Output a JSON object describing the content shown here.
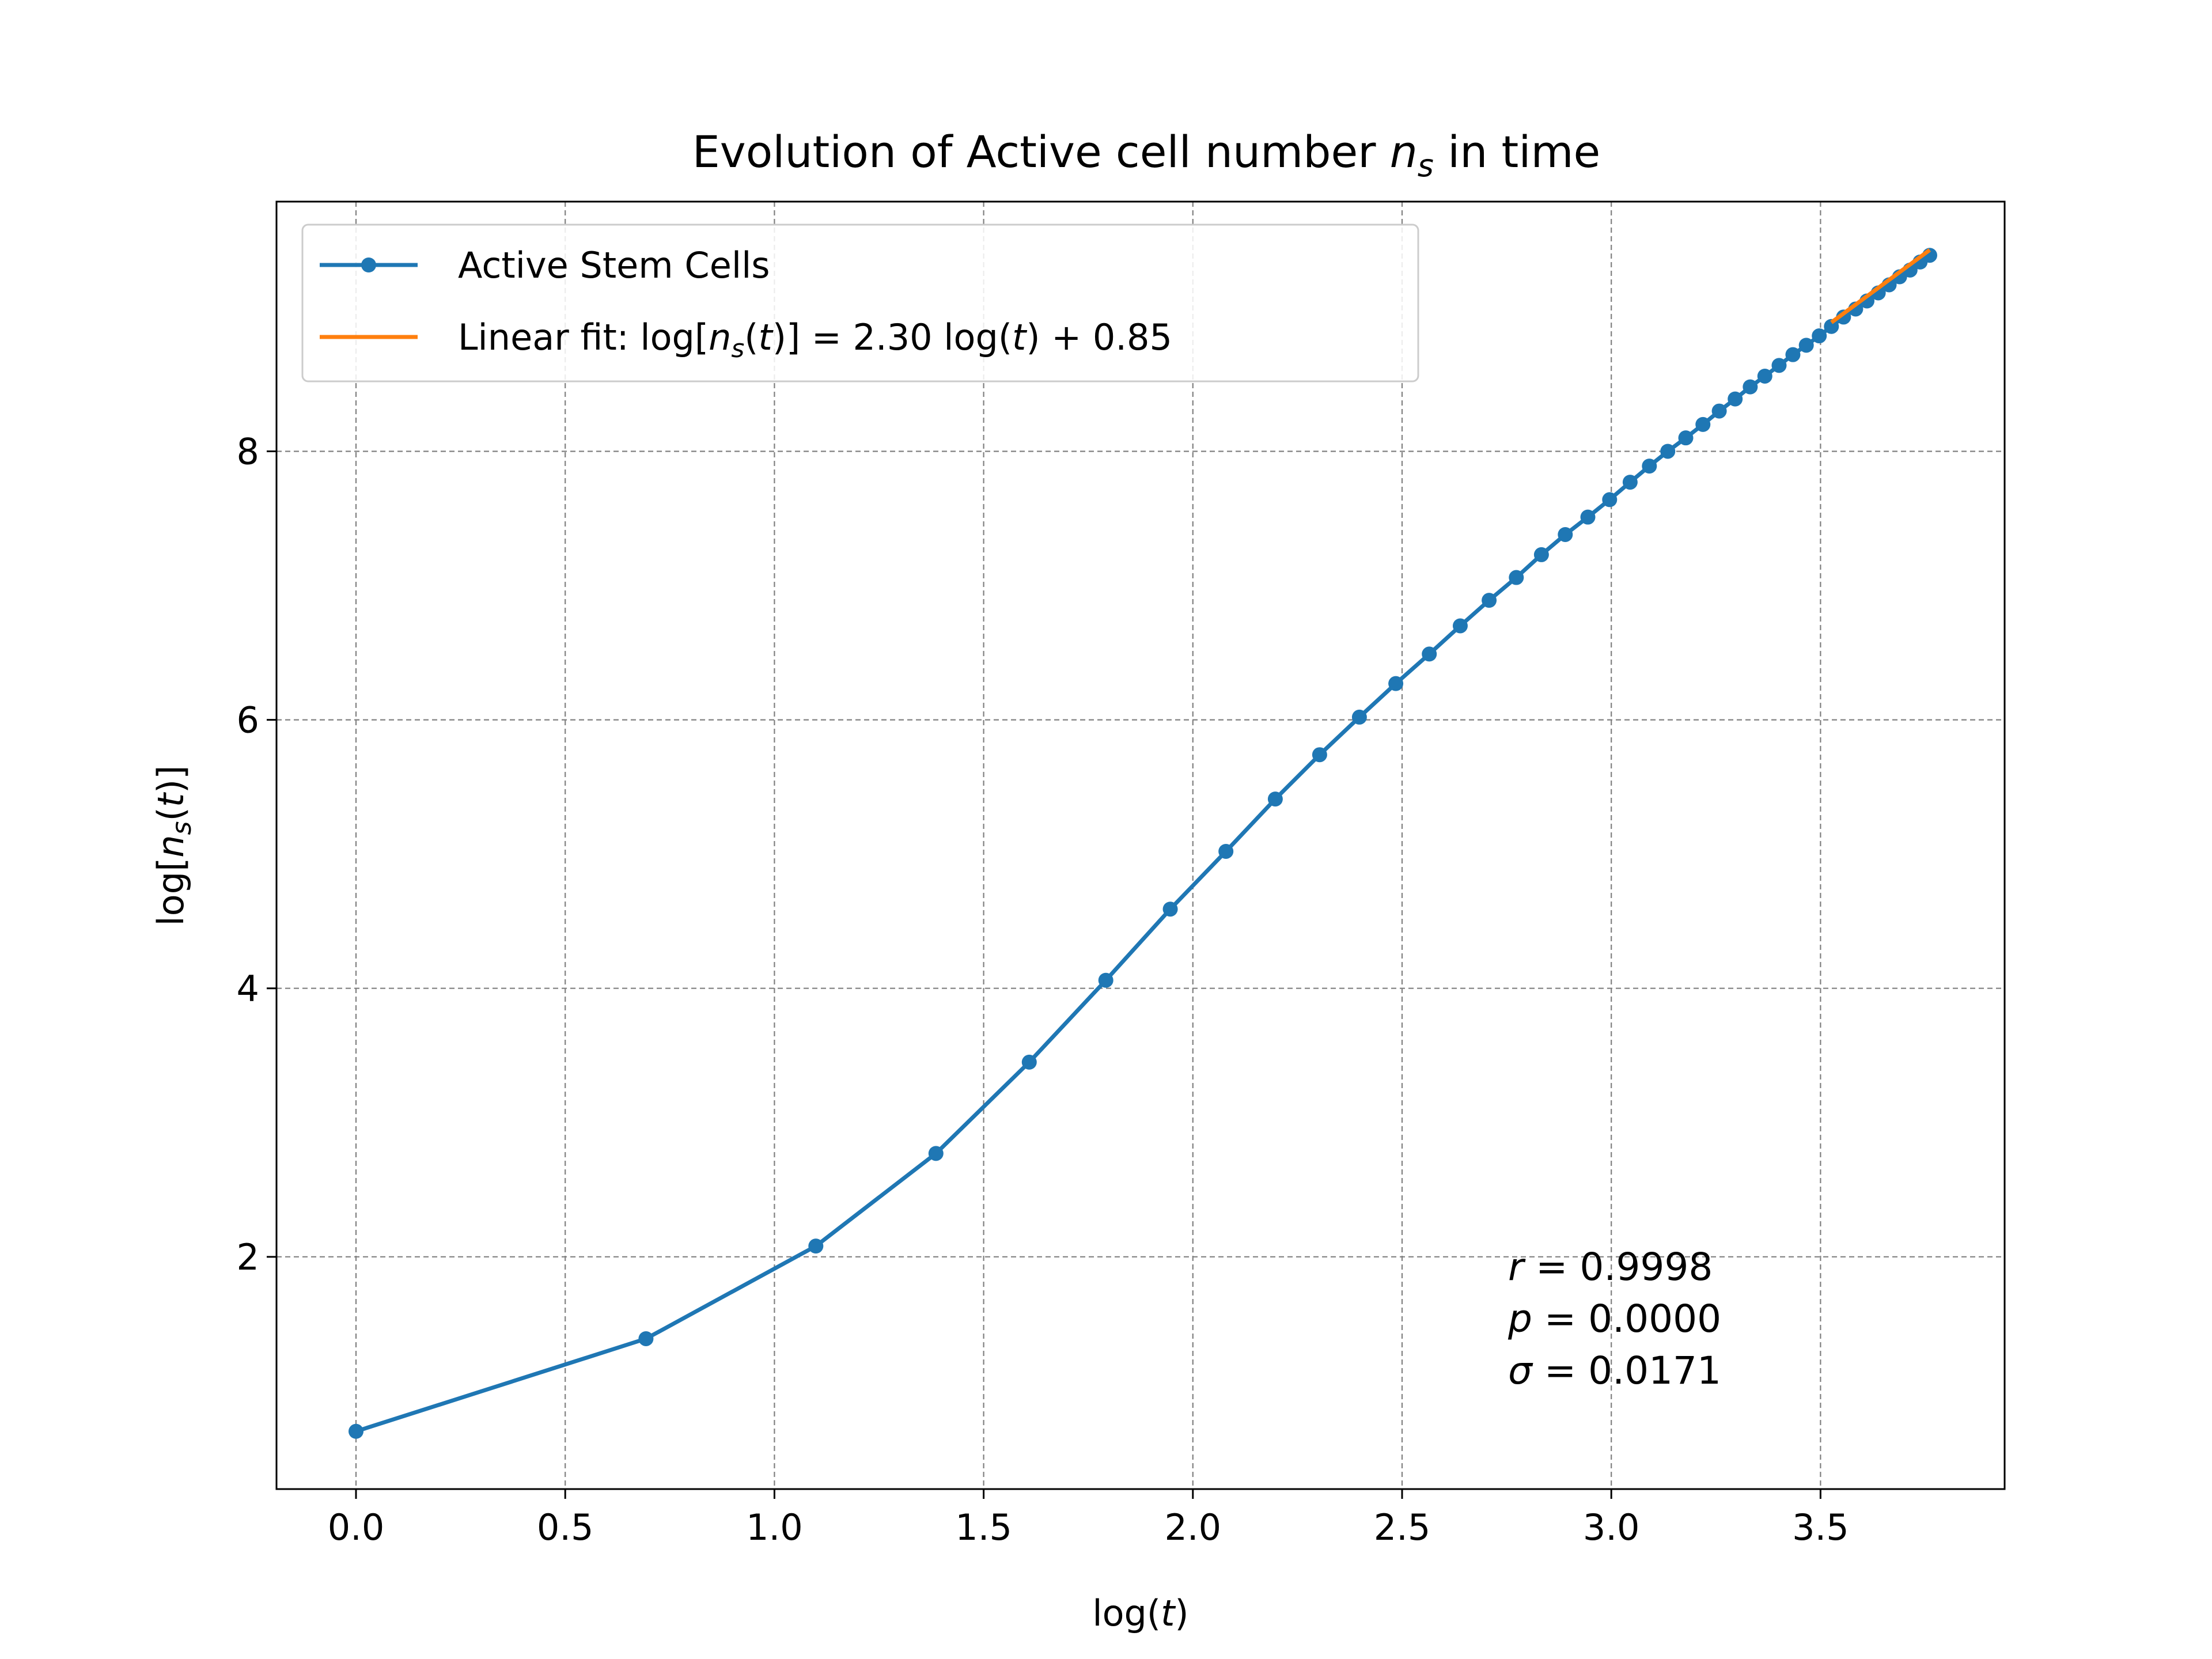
{
  "chart_data": {
    "type": "line",
    "title": {
      "prefix": "Evolution of Active cell number ",
      "var": "n",
      "sub": "s",
      "suffix": " in time"
    },
    "xlabel": {
      "pre": "log(",
      "var": "t",
      "post": ")"
    },
    "ylabel": {
      "pre": "log[",
      "var": "n",
      "sub": "s",
      "mid": "(",
      "var2": "t",
      "post": ")]"
    },
    "xlim": [
      -0.19,
      3.94
    ],
    "ylim": [
      0.27,
      9.86
    ],
    "xticks": [
      "0.0",
      "0.5",
      "1.0",
      "1.5",
      "2.0",
      "2.5",
      "3.0",
      "3.5"
    ],
    "xtick_values": [
      0.0,
      0.5,
      1.0,
      1.5,
      2.0,
      2.5,
      3.0,
      3.5
    ],
    "yticks": [
      "2",
      "4",
      "6",
      "8"
    ],
    "ytick_values": [
      2,
      4,
      6,
      8
    ],
    "grid": true,
    "legend_position": "upper-left",
    "series": [
      {
        "name": "Active Stem Cells",
        "color": "#1f77b4",
        "marker": "circle",
        "x": [
          0.0,
          0.693,
          1.099,
          1.386,
          1.609,
          1.792,
          1.946,
          2.079,
          2.197,
          2.303,
          2.398,
          2.485,
          2.565,
          2.639,
          2.708,
          2.773,
          2.833,
          2.89,
          2.944,
          2.996,
          3.045,
          3.091,
          3.135,
          3.178,
          3.219,
          3.258,
          3.296,
          3.332,
          3.367,
          3.401,
          3.434,
          3.466,
          3.497,
          3.526,
          3.555,
          3.584,
          3.611,
          3.638,
          3.664,
          3.689,
          3.714,
          3.738,
          3.761
        ],
        "y": [
          0.7,
          1.39,
          2.08,
          2.77,
          3.45,
          4.06,
          4.59,
          5.02,
          5.41,
          5.74,
          6.02,
          6.27,
          6.49,
          6.7,
          6.89,
          7.06,
          7.23,
          7.38,
          7.51,
          7.64,
          7.77,
          7.89,
          8.0,
          8.1,
          8.2,
          8.3,
          8.39,
          8.48,
          8.56,
          8.64,
          8.72,
          8.79,
          8.86,
          8.93,
          9.0,
          9.06,
          9.12,
          9.18,
          9.24,
          9.3,
          9.35,
          9.41,
          9.46
        ]
      },
      {
        "name_prefix": "Linear fit: ",
        "name_eq_pre": "log[",
        "name_var": "n",
        "name_sub": "s",
        "name_eq_mid": "(",
        "name_var2": "t",
        "name_eq_post": ")] = 2.30 log(",
        "name_var3": "t",
        "name_eq_end": ") + 0.85",
        "color": "#ff7f0e",
        "x": [
          3.526,
          3.761
        ],
        "y": [
          8.96,
          9.5
        ]
      }
    ],
    "annotations": [
      {
        "var": "r",
        "text": " = 0.9998"
      },
      {
        "var": "p",
        "text": " = 0.0000"
      },
      {
        "var": "σ",
        "text": " = 0.0171"
      }
    ]
  }
}
